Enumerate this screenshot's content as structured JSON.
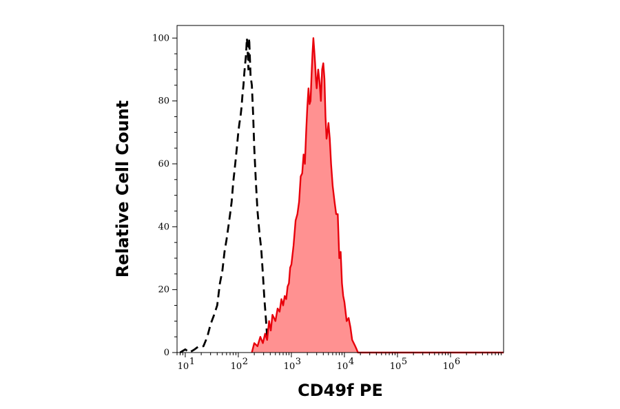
{
  "chart_data": {
    "type": "area",
    "title": "",
    "xlabel": "CD49f PE",
    "ylabel": "Relative Cell Count",
    "x_scale": "log",
    "xlim": [
      7,
      10000000
    ],
    "ylim": [
      0,
      104
    ],
    "x_ticks": [
      {
        "value": 10,
        "base": "10",
        "exp": "1"
      },
      {
        "value": 100,
        "base": "10",
        "exp": "2"
      },
      {
        "value": 1000,
        "base": "10",
        "exp": "3"
      },
      {
        "value": 10000,
        "base": "10",
        "exp": "4"
      },
      {
        "value": 100000,
        "base": "10",
        "exp": "5"
      },
      {
        "value": 1000000,
        "base": "10",
        "exp": "6"
      }
    ],
    "y_ticks": [
      "0",
      "20",
      "40",
      "60",
      "80",
      "100"
    ],
    "grid": false,
    "legend": "none",
    "series": [
      {
        "style": "dashed-outline",
        "color": "#000000",
        "x": [
          8,
          10,
          12,
          15,
          18,
          22,
          26,
          30,
          35,
          40,
          45,
          50,
          55,
          60,
          65,
          70,
          75,
          80,
          85,
          90,
          95,
          100,
          105,
          110,
          115,
          120,
          125,
          130,
          135,
          140,
          145,
          150,
          155,
          160,
          170,
          180,
          190,
          200,
          215,
          230,
          250,
          270,
          290,
          310,
          330,
          350,
          380
        ],
        "y": [
          0,
          1,
          0,
          1,
          2,
          2,
          5,
          9,
          12,
          15,
          22,
          26,
          32,
          36,
          40,
          44,
          48,
          54,
          58,
          62,
          66,
          70,
          73,
          75,
          78,
          82,
          85,
          89,
          92,
          95,
          100,
          96,
          90,
          100,
          88,
          85,
          76,
          65,
          54,
          45,
          38,
          33,
          25,
          17,
          11,
          5,
          0
        ]
      },
      {
        "style": "filled",
        "color": "#e8000b",
        "fill": "#ff9191",
        "x": [
          180,
          200,
          230,
          260,
          290,
          320,
          350,
          380,
          410,
          440,
          470,
          500,
          550,
          600,
          650,
          700,
          750,
          800,
          850,
          900,
          950,
          1000,
          1100,
          1200,
          1300,
          1400,
          1500,
          1600,
          1700,
          1800,
          1900,
          2000,
          2100,
          2200,
          2300,
          2400,
          2500,
          2600,
          2700,
          2800,
          2900,
          3000,
          3200,
          3400,
          3600,
          3800,
          4000,
          4200,
          4400,
          4600,
          4800,
          5000,
          5300,
          5600,
          6000,
          6500,
          7000,
          7500,
          8000,
          8500,
          9000,
          9500,
          10000,
          11000,
          12000,
          13000,
          14000,
          15000,
          16000,
          17000,
          18000,
          20000
        ],
        "y": [
          0,
          3,
          2,
          5,
          3,
          6,
          4,
          10,
          7,
          12,
          11,
          10,
          14,
          13,
          17,
          15,
          18,
          17,
          21,
          22,
          27,
          28,
          34,
          42,
          44,
          48,
          56,
          57,
          63,
          60,
          70,
          78,
          84,
          79,
          80,
          88,
          95,
          100,
          96,
          92,
          87,
          84,
          90,
          86,
          80,
          90,
          92,
          87,
          75,
          68,
          70,
          73,
          68,
          60,
          53,
          48,
          44,
          44,
          30,
          32,
          22,
          18,
          16,
          10,
          11,
          8,
          4,
          3,
          2,
          1,
          0,
          0
        ]
      }
    ]
  }
}
